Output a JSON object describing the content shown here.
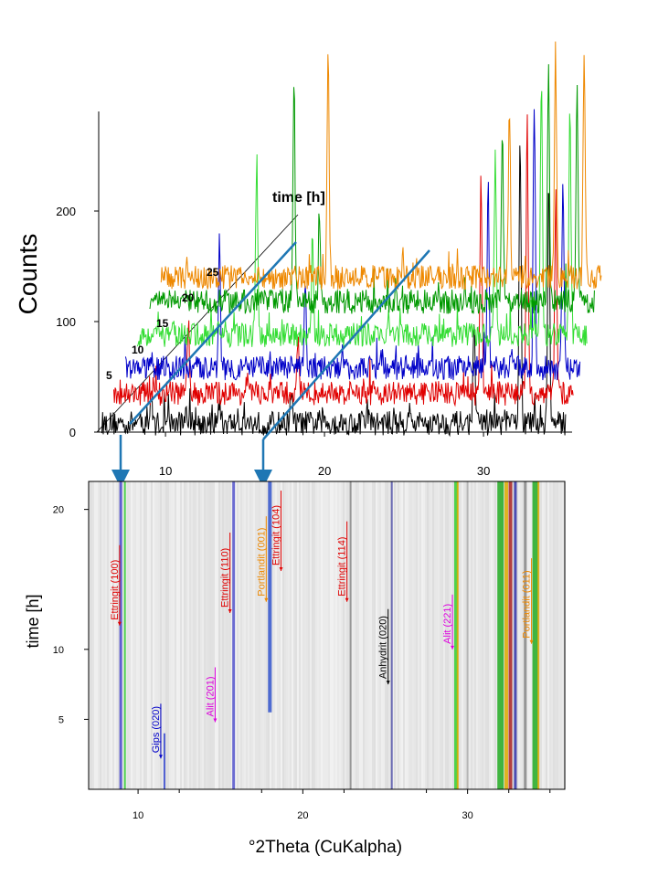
{
  "colors": {
    "black": "#000000",
    "red": "#e00000",
    "blue": "#0000c8",
    "lightgreen": "#33dd33",
    "darkgreen": "#009900",
    "orange": "#ee8800",
    "magenta": "#dd00dd",
    "arrow": "#1f77b4"
  },
  "chart_data": [
    {
      "type": "line",
      "title": "",
      "xlabel": "",
      "ylabel": "Counts",
      "xlim": [
        5.8,
        35.8
      ],
      "ylim": [
        0,
        300
      ],
      "xticks": [
        10,
        20,
        30
      ],
      "yticks": [
        0,
        100,
        200
      ],
      "axis_label_time": "time [h]",
      "time_labels": [
        "5",
        "10",
        "15",
        "20",
        "25"
      ],
      "series": [
        {
          "time_h": 0,
          "color": "black",
          "baseline": 8,
          "peaks": [
            [
              9.1,
              35
            ],
            [
              11.3,
              25
            ],
            [
              13.4,
              28
            ],
            [
              17.9,
              40
            ],
            [
              22.7,
              20
            ],
            [
              25.3,
              22
            ],
            [
              29.4,
              100
            ],
            [
              32.3,
              270
            ],
            [
              34.1,
              230
            ]
          ]
        },
        {
          "time_h": 5,
          "color": "red",
          "baseline": 35,
          "peaks": [
            [
              11.0,
              95
            ],
            [
              13.6,
              40
            ],
            [
              17.9,
              90
            ],
            [
              22.7,
              40
            ],
            [
              29.4,
              230
            ],
            [
              32.3,
              280
            ],
            [
              34.1,
              220
            ]
          ]
        },
        {
          "time_h": 10,
          "color": "blue",
          "baseline": 58,
          "peaks": [
            [
              12.5,
              170
            ],
            [
              17.9,
              130
            ],
            [
              22.7,
              70
            ],
            [
              29.4,
              220
            ],
            [
              32.3,
              300
            ],
            [
              34.1,
              230
            ]
          ]
        },
        {
          "time_h": 15,
          "color": "lightgreen",
          "baseline": 88,
          "peaks": [
            [
              14.4,
              250
            ],
            [
              17.9,
              170
            ],
            [
              22.7,
              100
            ],
            [
              29.4,
              250
            ],
            [
              32.3,
              320
            ],
            [
              34.1,
              290
            ]
          ]
        },
        {
          "time_h": 20,
          "color": "darkgreen",
          "baseline": 118,
          "peaks": [
            [
              16.3,
              320
            ],
            [
              17.9,
              200
            ],
            [
              22.7,
              130
            ],
            [
              29.4,
              270
            ],
            [
              32.3,
              330
            ],
            [
              34.1,
              310
            ]
          ]
        },
        {
          "time_h": 25,
          "color": "orange",
          "baseline": 140,
          "peaks": [
            [
              18.0,
              350
            ],
            [
              22.7,
              160
            ],
            [
              29.4,
              290
            ],
            [
              32.3,
              350
            ],
            [
              34.1,
              340
            ]
          ]
        }
      ]
    },
    {
      "type": "heatmap",
      "title": "",
      "xlabel": "°2Theta (CuKalpha)",
      "ylabel": "time [h]",
      "xlim": [
        7.0,
        35.9
      ],
      "ylim": [
        0,
        22
      ],
      "xticks": [
        10,
        20,
        30
      ],
      "yticks": [
        5,
        10,
        20
      ],
      "annotations": [
        {
          "label": "Ettringit (100)",
          "x": 9.1,
          "t": 11.7,
          "color": "red"
        },
        {
          "label": "Ettringit (110)",
          "x": 15.8,
          "t": 12.6,
          "color": "red"
        },
        {
          "label": "Portlandit (001)",
          "x": 18.0,
          "t": 13.4,
          "color": "orange"
        },
        {
          "label": "Ettringit (104)",
          "x": 18.9,
          "t": 15.6,
          "color": "red"
        },
        {
          "label": "Ettringit (114)",
          "x": 22.9,
          "t": 13.4,
          "color": "red"
        },
        {
          "label": "Anhydrit (020)",
          "x": 25.4,
          "t": 7.5,
          "color": "black"
        },
        {
          "label": "Alit (221)",
          "x": 29.3,
          "t": 10.0,
          "color": "magenta"
        },
        {
          "label": "Portlandit (011)",
          "x": 34.1,
          "t": 10.4,
          "color": "orange"
        },
        {
          "label": "Gips (020)",
          "x": 11.6,
          "t": 2.2,
          "color": "blue"
        },
        {
          "label": "Alit (201)",
          "x": 14.9,
          "t": 4.8,
          "color": "magenta"
        }
      ]
    }
  ]
}
